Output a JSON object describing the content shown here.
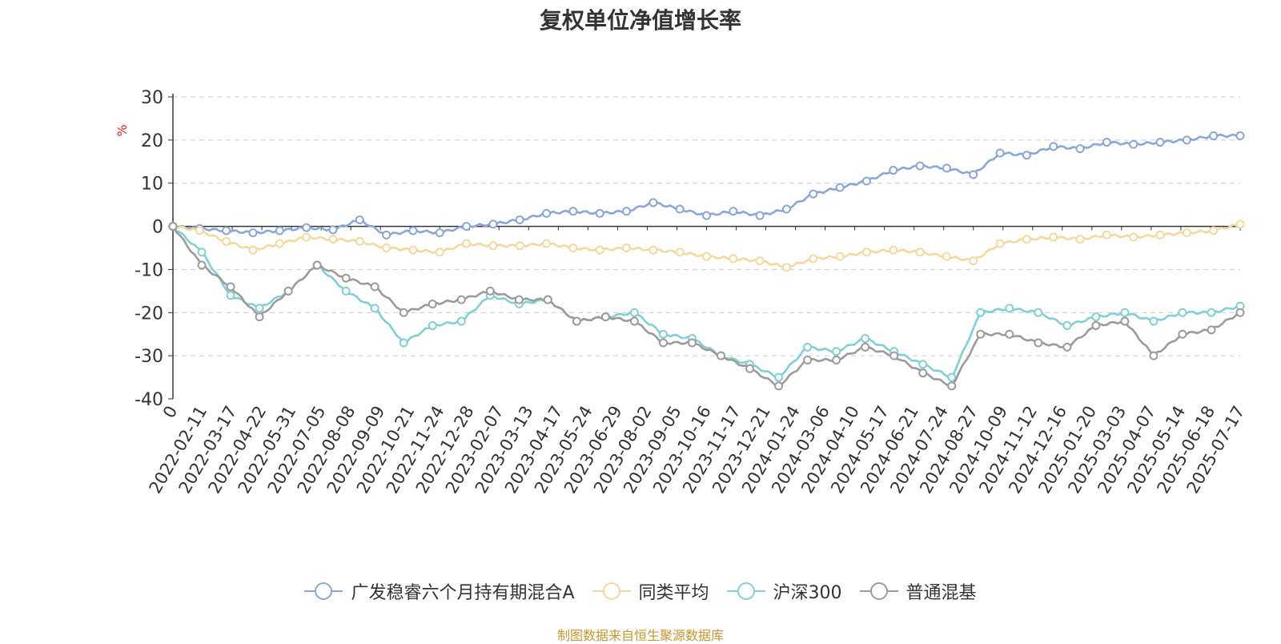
{
  "chart_data": {
    "type": "line",
    "title": "复权单位净值增长率",
    "ylabel": "%",
    "ylim": [
      -40,
      30
    ],
    "yticks": [
      30,
      20,
      10,
      0,
      -10,
      -20,
      -30,
      -40
    ],
    "x_origin_label": "0",
    "x_tick_labels": [
      "2022-02-11",
      "2022-03-17",
      "2022-04-22",
      "2022-05-31",
      "2022-07-05",
      "2022-08-08",
      "2022-09-09",
      "2022-10-21",
      "2022-11-24",
      "2022-12-28",
      "2023-02-07",
      "2023-03-13",
      "2023-04-17",
      "2023-05-24",
      "2023-06-29",
      "2023-08-02",
      "2023-09-05",
      "2023-10-16",
      "2023-11-17",
      "2023-12-21",
      "2024-01-24",
      "2024-03-06",
      "2024-04-10",
      "2024-05-17",
      "2024-06-21",
      "2024-07-24",
      "2024-08-27",
      "2024-10-09",
      "2024-11-12",
      "2024-12-16",
      "2025-01-20",
      "2025-03-03",
      "2025-04-07",
      "2025-05-14",
      "2025-06-18",
      "2025-07-17"
    ],
    "grid": "horizontal-dashed",
    "legend_position": "bottom",
    "series": [
      {
        "name": "广发稳睿六个月持有期混合A",
        "color": "#8aa6d8",
        "values": [
          0,
          -0.5,
          -1,
          -1.5,
          -1,
          -0.3,
          -0.8,
          1.5,
          -2,
          -1,
          -1.5,
          0,
          0.5,
          1.5,
          3,
          3.5,
          3,
          3.5,
          5.5,
          4,
          2.5,
          3.5,
          2.5,
          4,
          7.5,
          9,
          10.5,
          13,
          14,
          13.5,
          12,
          17,
          16.5,
          18.5,
          18,
          19.5,
          19,
          19.5,
          20,
          21,
          21
        ]
      },
      {
        "name": "同类平均",
        "color": "#f5d89b",
        "values": [
          0,
          -1,
          -3.5,
          -5.5,
          -4,
          -2.5,
          -3,
          -3.5,
          -5,
          -5.5,
          -6,
          -4,
          -4.5,
          -4.5,
          -4,
          -5,
          -5.5,
          -5,
          -5.5,
          -6,
          -7,
          -7.5,
          -8,
          -9.5,
          -7.5,
          -7,
          -6,
          -5.5,
          -6,
          -7,
          -8,
          -4,
          -3,
          -2.5,
          -3,
          -2,
          -2.5,
          -2,
          -1.5,
          -1,
          0.5
        ]
      },
      {
        "name": "沪深300",
        "color": "#7fd0d4",
        "values": [
          0,
          -6,
          -16,
          -19,
          -15,
          -9,
          -15,
          -19,
          -27,
          -23,
          -22,
          -16,
          -18,
          -17,
          -22,
          -21,
          -20,
          -25,
          -26,
          -30,
          -32,
          -35,
          -28,
          -29,
          -26,
          -29,
          -32,
          -35,
          -20,
          -19,
          -20,
          -23,
          -21,
          -20,
          -22,
          -20,
          -20,
          -18.5
        ]
      },
      {
        "name": "普通混基",
        "color": "#9b9b9b",
        "values": [
          0,
          -9,
          -14,
          -21,
          -15,
          -9,
          -12,
          -14,
          -20,
          -18,
          -17,
          -15,
          -17,
          -17,
          -22,
          -21,
          -22,
          -27,
          -27,
          -30,
          -33,
          -37,
          -31,
          -31,
          -28,
          -30,
          -34,
          -37,
          -25,
          -25,
          -27,
          -28,
          -23,
          -22,
          -30,
          -25,
          -24,
          -20
        ]
      }
    ]
  },
  "source_note": "制图数据来自恒生聚源数据库"
}
